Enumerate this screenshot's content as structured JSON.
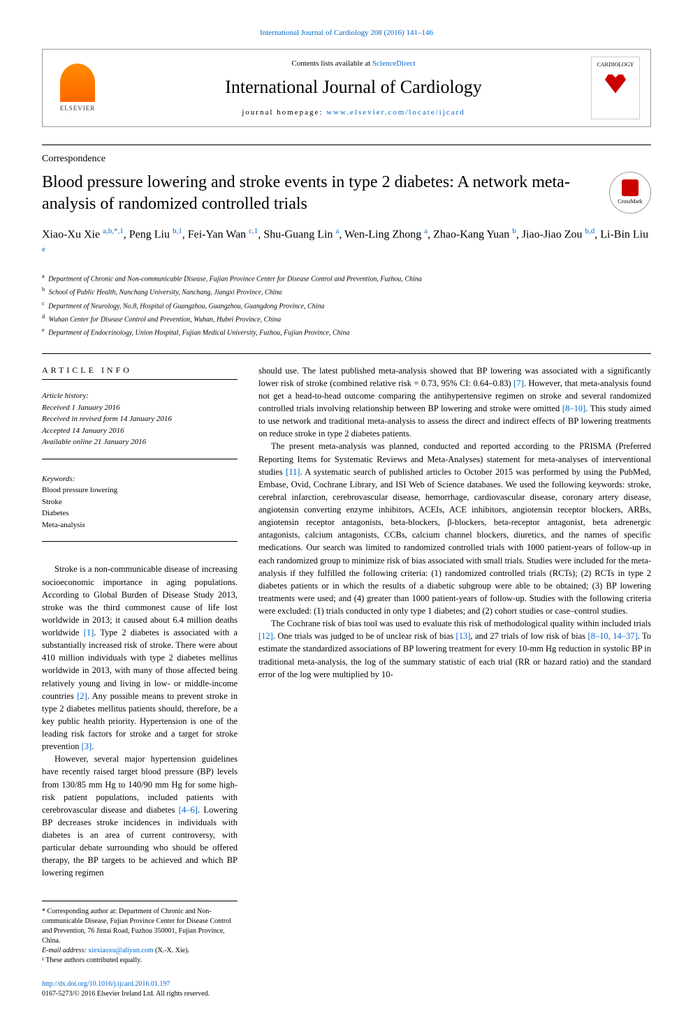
{
  "top_link": "International Journal of Cardiology 208 (2016) 141–146",
  "header": {
    "contents_prefix": "Contents lists available at ",
    "contents_link": "ScienceDirect",
    "journal_name": "International Journal of Cardiology",
    "homepage_prefix": "journal homepage: ",
    "homepage_link": "www.elsevier.com/locate/ijcard",
    "elsevier_label": "ELSEVIER",
    "cardiology_label": "CARDIOLOGY"
  },
  "section_type": "Correspondence",
  "article_title": "Blood pressure lowering and stroke events in type 2 diabetes: A network meta-analysis of randomized controlled trials",
  "crossmark_label": "CrossMark",
  "authors_html": "Xiao-Xu Xie <sup>a,b,*,1</sup>, Peng Liu <sup>b,1</sup>, Fei-Yan Wan <sup>c,1</sup>, Shu-Guang Lin <sup>a</sup>, Wen-Ling Zhong <sup>a</sup>, Zhao-Kang Yuan <sup>b</sup>, Jiao-Jiao Zou <sup>b,d</sup>, Li-Bin Liu <sup>e</sup>",
  "affiliations": [
    {
      "key": "a",
      "text": "Department of Chronic and Non-communicable Disease, Fujian Province Center for Disease Control and Prevention, Fuzhou, China"
    },
    {
      "key": "b",
      "text": "School of Public Health, Nanchang University, Nanchang, Jiangxi Province, China"
    },
    {
      "key": "c",
      "text": "Department of Neurology, No.8, Hospital of Guangzhou, Guangzhou, Guangdong Province, China"
    },
    {
      "key": "d",
      "text": "Wuhan Center for Disease Control and Prevention, Wuhan, Hubei Province, China"
    },
    {
      "key": "e",
      "text": "Department of Endocrinology, Union Hospital, Fujian Medical University, Fuzhou, Fujian Province, China"
    }
  ],
  "article_info": {
    "heading": "ARTICLE INFO",
    "history_label": "Article history:",
    "received": "Received 1 January 2016",
    "revised": "Received in revised form 14 January 2016",
    "accepted": "Accepted 14 January 2016",
    "online": "Available online 21 January 2016",
    "keywords_label": "Keywords:",
    "keywords": [
      "Blood pressure lowering",
      "Stroke",
      "Diabetes",
      "Meta-analysis"
    ]
  },
  "body": {
    "p1": "Stroke is a non-communicable disease of increasing socioeconomic importance in aging populations. According to Global Burden of Disease Study 2013, stroke was the third commonest cause of life lost worldwide in 2013; it caused about 6.4 million deaths worldwide [1]. Type 2 diabetes is associated with a substantially increased risk of stroke. There were about 410 million individuals with type 2 diabetes mellitus worldwide in 2013, with many of those affected being relatively young and living in low- or middle-income countries [2]. Any possible means to prevent stroke in type 2 diabetes mellitus patients should, therefore, be a key public health priority. Hypertension is one of the leading risk factors for stroke and a target for stroke prevention [3].",
    "p2": "However, several major hypertension guidelines have recently raised target blood pressure (BP) levels from 130/85 mm Hg to 140/90 mm Hg for some high-risk patient populations, included patients with cerebrovascular disease and diabetes [4–6]. Lowering BP decreases stroke incidences in individuals with diabetes is an area of current controversy, with particular debate surrounding who should be offered therapy, the BP targets to be achieved and which BP lowering regimen",
    "p3": "should use. The latest published meta-analysis showed that BP lowering was associated with a significantly lower risk of stroke (combined relative risk = 0.73, 95% CI: 0.64–0.83) [7]. However, that meta-analysis found not get a head-to-head outcome comparing the antihypertensive regimen on stroke and several randomized controlled trials involving relationship between BP lowering and stroke were omitted [8–10]. This study aimed to use network and traditional meta-analysis to assess the direct and indirect effects of BP lowering treatments on reduce stroke in type 2 diabetes patients.",
    "p4": "The present meta-analysis was planned, conducted and reported according to the PRISMA (Preferred Reporting Items for Systematic Reviews and Meta-Analyses) statement for meta-analyses of interventional studies [11]. A systematic search of published articles to October 2015 was performed by using the PubMed, Embase, Ovid, Cochrane Library, and ISI Web of Science databases. We used the following keywords: stroke, cerebral infarction, cerebrovascular disease, hemorrhage, cardiovascular disease, coronary artery disease, angiotensin converting enzyme inhibitors, ACEIs, ACE inhibitors, angiotensin receptor blockers, ARBs, angiotensin receptor antagonists, beta-blockers, β-blockers, beta-receptor antagonist, beta adrenergic antagonists, calcium antagonists, CCBs, calcium channel blockers, diuretics, and the names of specific medications. Our search was limited to randomized controlled trials with 1000 patient-years of follow-up in each randomized group to minimize risk of bias associated with small trials. Studies were included for the meta-analysis if they fulfilled the following criteria: (1) randomized controlled trials (RCTs); (2) RCTs in type 2 diabetes patients or in which the results of a diabetic subgroup were able to be obtained; (3) BP lowering treatments were used; and (4) greater than 1000 patient-years of follow-up. Studies with the following criteria were excluded: (1) trials conducted in only type 1 diabetes; and (2) cohort studies or case–control studies.",
    "p5": "The Cochrane risk of bias tool was used to evaluate this risk of methodological quality within included trials [12]. One trials was judged to be of unclear risk of bias [13], and 27 trials of low risk of bias [8–10, 14–37]. To estimate the standardized associations of BP lowering treatment for every 10-mm Hg reduction in systolic BP in traditional meta-analysis, the log of the summary statistic of each trial (RR or hazard ratio) and the standard error of the log were multiplied by 10-"
  },
  "footnotes": {
    "corresponding": "* Corresponding author at: Department of Chronic and Non-communicable Disease, Fujian Province Center for Disease Control and Prevention, 76 Jintai Road, Fuzhou 350001, Fujian Province, China.",
    "email_label": "E-mail address: ",
    "email": "xiexiaoxu@aliyun.com",
    "email_suffix": " (X.-X. Xie).",
    "equal": "¹ These authors contributed equally."
  },
  "bottom": {
    "doi": "http://dx.doi.org/10.1016/j.ijcard.2016.01.197",
    "issn": "0167-5273/© 2016 Elsevier Ireland Ltd. All rights reserved."
  },
  "colors": {
    "link": "#0066cc",
    "text": "#000000",
    "background": "#ffffff",
    "elsevier_orange": "#ff6600",
    "heart_red": "#cc0000",
    "border": "#999999"
  }
}
